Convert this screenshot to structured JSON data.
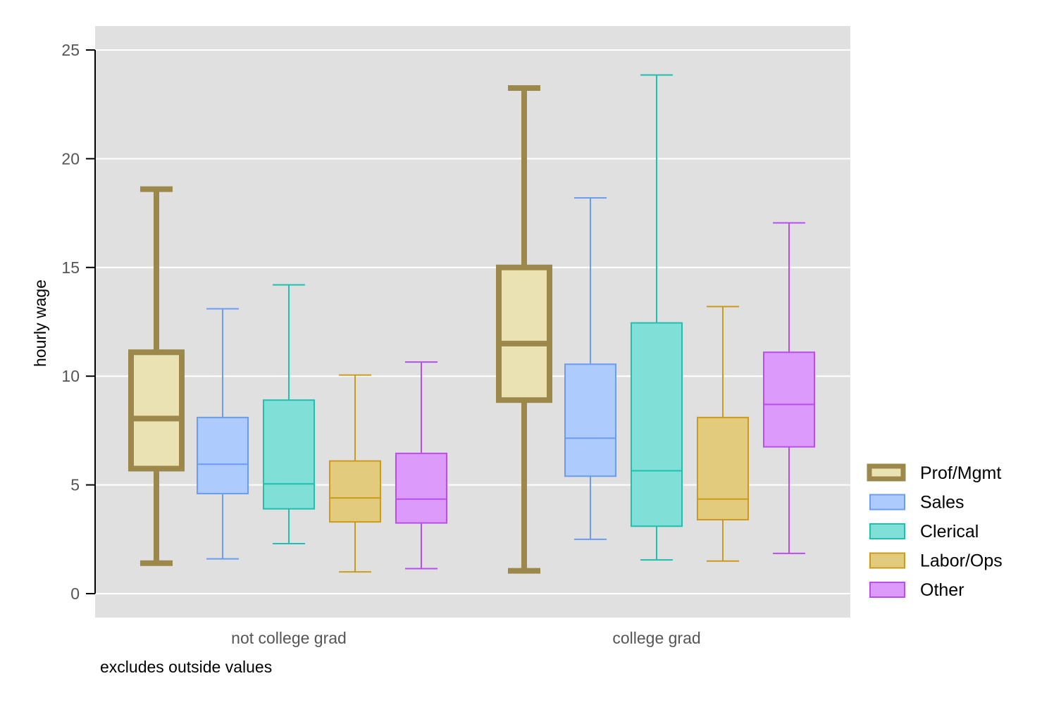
{
  "chart_data": {
    "type": "box",
    "ylabel": "hourly wage",
    "xlabel": "",
    "note": "excludes outside values",
    "ylim": [
      -1.1,
      26.1
    ],
    "yticks": [
      0,
      5,
      10,
      15,
      20,
      25
    ],
    "grid": true,
    "legend_position": "right",
    "groups": [
      "not college grad",
      "college grad"
    ],
    "series": [
      {
        "name": "Prof/Mgmt",
        "fill": "#ebe2b3",
        "stroke": "#9c884a",
        "boxes": [
          {
            "group": "not college grad",
            "whisker_low": 1.4,
            "q1": 5.75,
            "median": 8.05,
            "q3": 11.1,
            "whisker_high": 18.6
          },
          {
            "group": "college grad",
            "whisker_low": 1.05,
            "q1": 8.9,
            "median": 11.5,
            "q3": 15.0,
            "whisker_high": 23.25
          }
        ]
      },
      {
        "name": "Sales",
        "fill": "#aecbfd",
        "stroke": "#6b9cf1",
        "boxes": [
          {
            "group": "not college grad",
            "whisker_low": 1.6,
            "q1": 4.6,
            "median": 5.95,
            "q3": 8.1,
            "whisker_high": 13.1
          },
          {
            "group": "college grad",
            "whisker_low": 2.5,
            "q1": 5.4,
            "median": 7.15,
            "q3": 10.55,
            "whisker_high": 18.2
          }
        ]
      },
      {
        "name": "Clerical",
        "fill": "#80dfd6",
        "stroke": "#21bfb0",
        "boxes": [
          {
            "group": "not college grad",
            "whisker_low": 2.3,
            "q1": 3.9,
            "median": 5.05,
            "q3": 8.9,
            "whisker_high": 14.2
          },
          {
            "group": "college grad",
            "whisker_low": 1.55,
            "q1": 3.1,
            "median": 5.65,
            "q3": 12.45,
            "whisker_high": 23.85
          }
        ]
      },
      {
        "name": "Labor/Ops",
        "fill": "#e3cb7e",
        "stroke": "#cc9b1e",
        "boxes": [
          {
            "group": "not college grad",
            "whisker_low": 1.0,
            "q1": 3.3,
            "median": 4.4,
            "q3": 6.1,
            "whisker_high": 10.05
          },
          {
            "group": "college grad",
            "whisker_low": 1.5,
            "q1": 3.4,
            "median": 4.35,
            "q3": 8.1,
            "whisker_high": 13.2
          }
        ]
      },
      {
        "name": "Other",
        "fill": "#dc9bfb",
        "stroke": "#b94ef0",
        "boxes": [
          {
            "group": "not college grad",
            "whisker_low": 1.15,
            "q1": 3.25,
            "median": 4.35,
            "q3": 6.45,
            "whisker_high": 10.65
          },
          {
            "group": "college grad",
            "whisker_low": 1.85,
            "q1": 6.75,
            "median": 8.7,
            "q3": 11.1,
            "whisker_high": 17.05
          }
        ]
      }
    ],
    "emphasized_series": "Prof/Mgmt",
    "colors": {
      "plot_background": "#e0e0e0",
      "gridline": "#ffffff",
      "axis": "#000000",
      "tick_label": "#555555"
    }
  }
}
